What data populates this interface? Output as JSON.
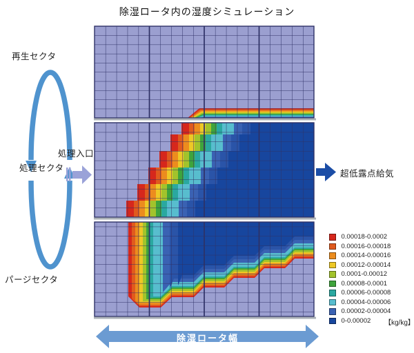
{
  "title": "除湿ロータ内の湿度シミュレーション",
  "labels": {
    "regeneration_sector": "再生セクタ",
    "process_inlet": "処理入口",
    "process_sector": "処理セクタ",
    "purge_sector": "パージセクタ",
    "supply_air": "超低露点給気",
    "rotor_width": "除湿ロータ幅"
  },
  "legend": {
    "unit": "【kg/kg】",
    "items": [
      {
        "range": "0.00018-0.0002",
        "color": "#d6271c"
      },
      {
        "range": "0.00016-0.00018",
        "color": "#e05a1e"
      },
      {
        "range": "0.00014-0.00016",
        "color": "#ec8c1e"
      },
      {
        "range": "0.00012-0.00014",
        "color": "#eec826"
      },
      {
        "range": "0.0001-0.00012",
        "color": "#a2c32c"
      },
      {
        "range": "0.00008-0.0001",
        "color": "#3fa43c"
      },
      {
        "range": "0.00006-0.00008",
        "color": "#2aa8a0"
      },
      {
        "range": "0.00004-0.00006",
        "color": "#58bdce"
      },
      {
        "range": "0.00002-0.00004",
        "color": "#3a62b3"
      },
      {
        "range": "0-0.00002",
        "color": "#17469e"
      }
    ]
  },
  "colors": {
    "cell_bg": "#9b9fd0",
    "grid_line": "#2e3166",
    "mid_blue": "#2a54a8",
    "cycle_arrow": "#4f93ce",
    "inlet_arrow": "#9aa2d8",
    "outlet_arrow": "#1b4da6",
    "width_arrow": "#6b9bd2",
    "panel_shadow": "#aab0b6"
  }
}
